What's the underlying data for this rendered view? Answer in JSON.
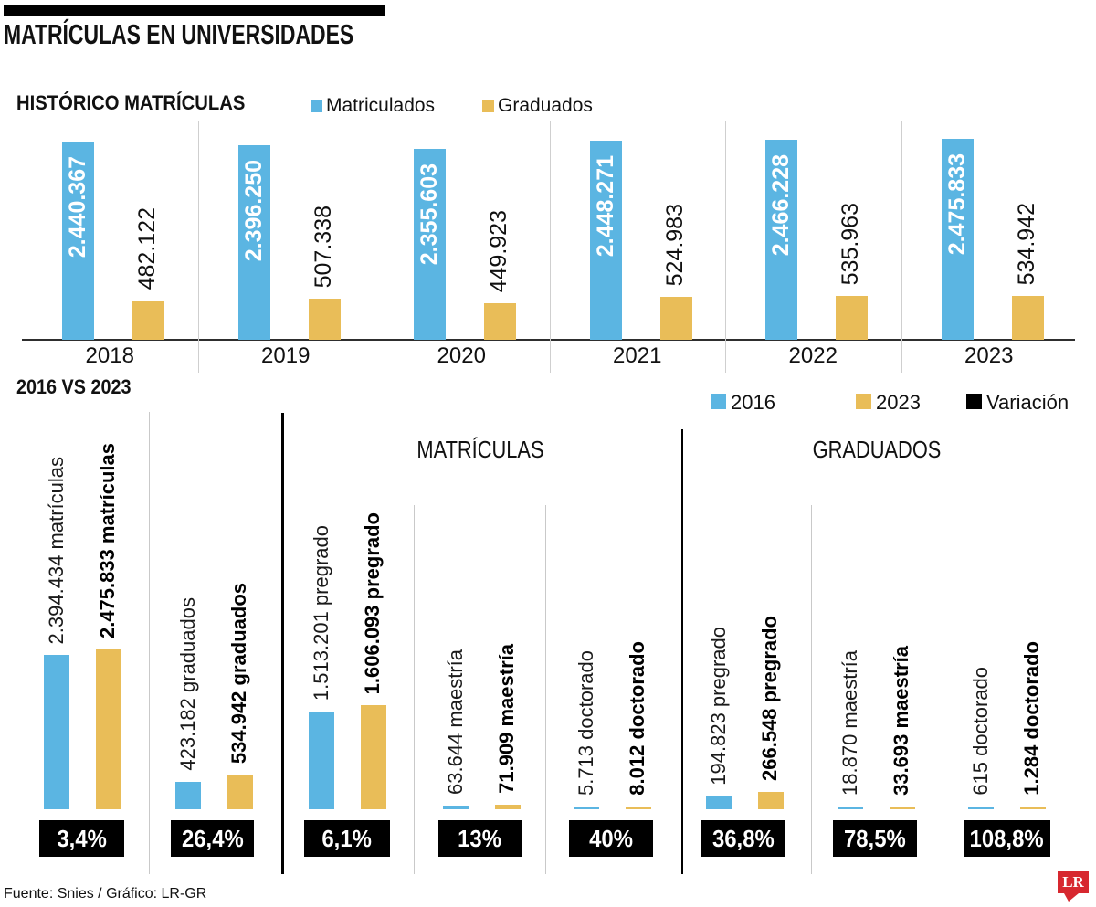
{
  "page_title": "MATRÍCULAS EN UNIVERSIDADES",
  "colors": {
    "blue": "#5bb5e2",
    "gold": "#e9bd58",
    "black": "#000000",
    "logo_red": "#d7282f",
    "separator_gray": "#c9c9c9"
  },
  "footer": {
    "source": "Fuente: Snies / Gráfico: LR-GR",
    "logo_text": "LR"
  },
  "chart_data": [
    {
      "id": "historico",
      "type": "bar",
      "title": "HISTÓRICO MATRÍCULAS",
      "legend_position": "top",
      "grid": false,
      "ylim": [
        0,
        2475833
      ],
      "legend": [
        {
          "name": "Matriculados",
          "color": "#5bb5e2"
        },
        {
          "name": "Graduados",
          "color": "#e9bd58"
        }
      ],
      "categories": [
        "2018",
        "2019",
        "2020",
        "2021",
        "2022",
        "2023"
      ],
      "series": [
        {
          "name": "Matriculados",
          "values": [
            2440367,
            2396250,
            2355603,
            2448271,
            2466228,
            2475833
          ],
          "labels": [
            "2.440.367",
            "2.396.250",
            "2.355.603",
            "2.448.271",
            "2.466.228",
            "2.475.833"
          ]
        },
        {
          "name": "Graduados",
          "values": [
            482122,
            507338,
            449923,
            524983,
            535963,
            534942
          ],
          "labels": [
            "482.122",
            "507.338",
            "449.923",
            "524.983",
            "535.963",
            "534.942"
          ]
        }
      ]
    },
    {
      "id": "comparison_2016_2023",
      "type": "bar",
      "title": "2016 VS 2023",
      "legend_position": "top-right",
      "grid": false,
      "legend": [
        {
          "name": "2016",
          "color": "#5bb5e2"
        },
        {
          "name": "2023",
          "color": "#e9bd58"
        },
        {
          "name": "Variación",
          "color": "#000000"
        }
      ],
      "section_headers": [
        "MATRÍCULAS",
        "GRADUADOS"
      ],
      "groups": [
        {
          "name": "matrículas",
          "section": "",
          "value_2016": 2394434,
          "label_2016": "2.394.434 matrículas",
          "value_2023": 2475833,
          "label_2023": "2.475.833 matrículas",
          "variation": "3,4%"
        },
        {
          "name": "graduados",
          "section": "",
          "value_2016": 423182,
          "label_2016": "423.182 graduados",
          "value_2023": 534942,
          "label_2023": "534.942 graduados",
          "variation": "26,4%"
        },
        {
          "name": "pregrado",
          "section": "MATRÍCULAS",
          "value_2016": 1513201,
          "label_2016": "1.513.201 pregrado",
          "value_2023": 1606093,
          "label_2023": "1.606.093 pregrado",
          "variation": "6,1%"
        },
        {
          "name": "maestría",
          "section": "MATRÍCULAS",
          "value_2016": 63644,
          "label_2016": "63.644 maestría",
          "value_2023": 71909,
          "label_2023": "71.909 maestría",
          "variation": "13%"
        },
        {
          "name": "doctorado",
          "section": "MATRÍCULAS",
          "value_2016": 5713,
          "label_2016": "5.713 doctorado",
          "value_2023": 8012,
          "label_2023": "8.012 doctorado",
          "variation": "40%"
        },
        {
          "name": "pregrado",
          "section": "GRADUADOS",
          "value_2016": 194823,
          "label_2016": "194.823 pregrado",
          "value_2023": 266548,
          "label_2023": "266.548 pregrado",
          "variation": "36,8%"
        },
        {
          "name": "maestría",
          "section": "GRADUADOS",
          "value_2016": 18870,
          "label_2016": "18.870 maestría",
          "value_2023": 33693,
          "label_2023": "33.693 maestría",
          "variation": "78,5%"
        },
        {
          "name": "doctorado",
          "section": "GRADUADOS",
          "value_2016": 615,
          "label_2016": "615 doctorado",
          "value_2023": 1284,
          "label_2023": "1.284 doctorado",
          "variation": "108,8%"
        }
      ]
    }
  ]
}
